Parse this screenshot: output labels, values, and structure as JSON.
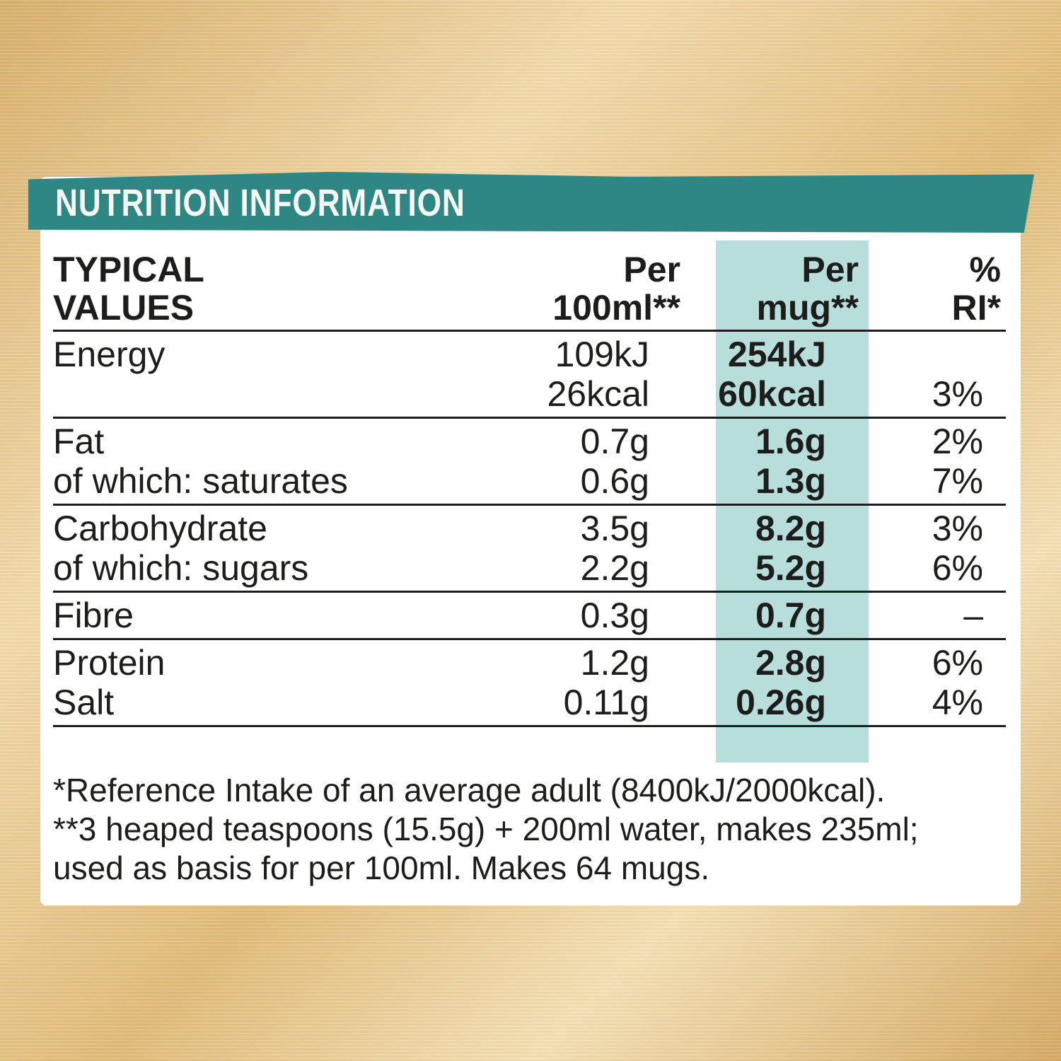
{
  "header": {
    "title": "NUTRITION INFORMATION"
  },
  "table": {
    "columns": [
      [
        "TYPICAL",
        "VALUES"
      ],
      [
        "Per",
        "100ml**"
      ],
      [
        "Per",
        "mug**"
      ],
      [
        "%",
        "RI*"
      ]
    ],
    "sections": [
      [
        [
          "Energy",
          "109kJ",
          "254kJ",
          null
        ],
        [
          null,
          "26kcal",
          "60kcal",
          "3%"
        ]
      ],
      [
        [
          "Fat",
          "0.7g",
          "1.6g",
          "2%"
        ],
        [
          "of which: saturates",
          "0.6g",
          "1.3g",
          "7%"
        ]
      ],
      [
        [
          "Carbohydrate",
          "3.5g",
          "8.2g",
          "3%"
        ],
        [
          "of which: sugars",
          "2.2g",
          "5.2g",
          "6%"
        ]
      ],
      [
        [
          "Fibre",
          "0.3g",
          "0.7g",
          "–"
        ]
      ],
      [
        [
          "Protein",
          "1.2g",
          "2.8g",
          "6%"
        ],
        [
          "Salt",
          "0.11g",
          "0.26g",
          "4%"
        ]
      ]
    ]
  },
  "footnotes": [
    "*Reference Intake of an average adult (8400kJ/2000kcal).",
    "**3 heaped teaspoons (15.5g) + 200ml water, makes 235ml;",
    "used as basis for per 100ml. Makes 64 mugs."
  ]
}
